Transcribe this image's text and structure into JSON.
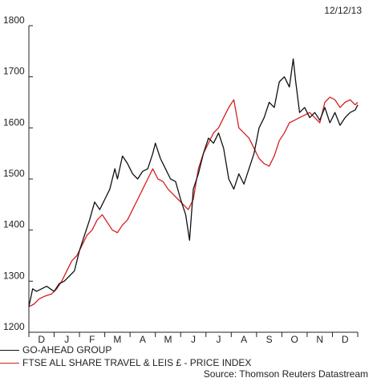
{
  "date_label": "12/12/13",
  "source": "Source: Thomson Reuters Datastream",
  "colors": {
    "series1": "#111111",
    "series2": "#d42020",
    "axis": "#222222"
  },
  "chart_data": {
    "type": "line",
    "ylim": [
      1200,
      1800
    ],
    "yticks": [
      1200,
      1300,
      1400,
      1500,
      1600,
      1700,
      1800
    ],
    "xlim": [
      0,
      13
    ],
    "months": [
      "D",
      "J",
      "F",
      "M",
      "A",
      "M",
      "J",
      "J",
      "A",
      "S",
      "O",
      "N",
      "D"
    ],
    "grid": false,
    "legend_placement": "bottom-left",
    "series": [
      {
        "name": "GO-AHEAD GROUP",
        "x": [
          0,
          0.15,
          0.3,
          0.5,
          0.7,
          1.0,
          1.2,
          1.4,
          1.6,
          1.8,
          2.0,
          2.2,
          2.4,
          2.6,
          2.8,
          3.0,
          3.2,
          3.4,
          3.5,
          3.7,
          3.9,
          4.1,
          4.3,
          4.5,
          4.7,
          4.9,
          5.0,
          5.2,
          5.4,
          5.6,
          5.8,
          6.0,
          6.2,
          6.35,
          6.5,
          6.7,
          6.9,
          7.1,
          7.3,
          7.5,
          7.7,
          7.9,
          8.1,
          8.3,
          8.5,
          8.7,
          8.9,
          9.1,
          9.3,
          9.5,
          9.7,
          9.9,
          10.1,
          10.3,
          10.45,
          10.55,
          10.7,
          10.9,
          11.1,
          11.3,
          11.5,
          11.7,
          11.9,
          12.1,
          12.3,
          12.5,
          12.7,
          12.9,
          13.0
        ],
        "values": [
          1250,
          1285,
          1280,
          1285,
          1290,
          1280,
          1295,
          1300,
          1310,
          1320,
          1360,
          1390,
          1420,
          1455,
          1440,
          1460,
          1480,
          1520,
          1500,
          1545,
          1530,
          1510,
          1500,
          1515,
          1520,
          1550,
          1570,
          1540,
          1520,
          1500,
          1495,
          1460,
          1430,
          1380,
          1480,
          1510,
          1550,
          1580,
          1570,
          1590,
          1560,
          1500,
          1480,
          1510,
          1490,
          1520,
          1550,
          1600,
          1620,
          1650,
          1640,
          1690,
          1700,
          1680,
          1735,
          1690,
          1630,
          1640,
          1620,
          1630,
          1615,
          1640,
          1610,
          1630,
          1605,
          1620,
          1630,
          1635,
          1645
        ]
      },
      {
        "name": "FTSE ALL SHARE TRAVEL & LEIS £ - PRICE INDEX",
        "x": [
          0,
          0.2,
          0.4,
          0.6,
          0.9,
          1.1,
          1.3,
          1.5,
          1.7,
          1.9,
          2.1,
          2.3,
          2.5,
          2.7,
          2.9,
          3.1,
          3.3,
          3.5,
          3.7,
          3.9,
          4.1,
          4.3,
          4.5,
          4.7,
          4.9,
          5.1,
          5.3,
          5.5,
          5.7,
          5.9,
          6.1,
          6.3,
          6.5,
          6.7,
          6.9,
          7.1,
          7.3,
          7.5,
          7.7,
          7.9,
          8.1,
          8.3,
          8.5,
          8.7,
          8.9,
          9.1,
          9.3,
          9.5,
          9.7,
          9.9,
          10.1,
          10.3,
          10.5,
          10.7,
          10.9,
          11.1,
          11.3,
          11.5,
          11.7,
          11.9,
          12.1,
          12.3,
          12.5,
          12.7,
          12.9,
          13.0
        ],
        "values": [
          1250,
          1255,
          1265,
          1270,
          1275,
          1285,
          1300,
          1320,
          1340,
          1350,
          1370,
          1390,
          1400,
          1420,
          1430,
          1415,
          1400,
          1395,
          1410,
          1420,
          1440,
          1460,
          1480,
          1500,
          1520,
          1500,
          1495,
          1480,
          1470,
          1460,
          1450,
          1440,
          1460,
          1520,
          1550,
          1570,
          1590,
          1600,
          1620,
          1640,
          1655,
          1600,
          1590,
          1580,
          1560,
          1540,
          1530,
          1525,
          1545,
          1575,
          1590,
          1610,
          1615,
          1620,
          1625,
          1630,
          1620,
          1610,
          1650,
          1660,
          1655,
          1640,
          1650,
          1655,
          1645,
          1650
        ]
      }
    ]
  }
}
